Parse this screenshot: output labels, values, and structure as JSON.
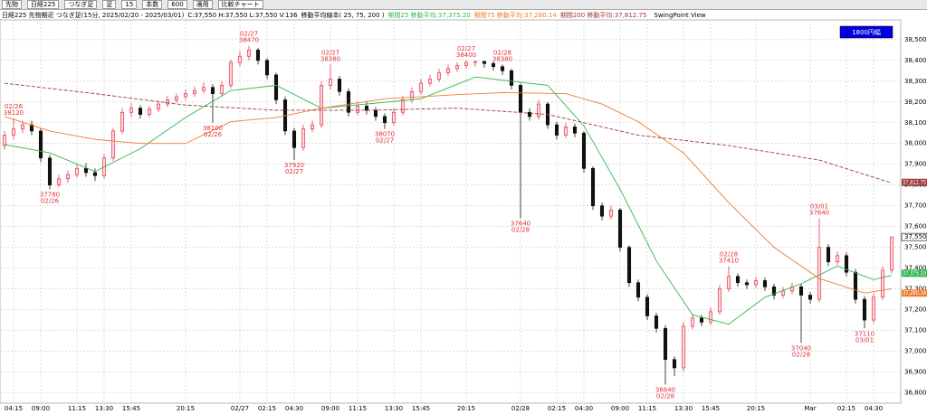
{
  "toolbar": [
    "先物",
    "日経225",
    "つなぎ足",
    "足",
    "15",
    "本数",
    "600",
    "適用",
    "比較チャート"
  ],
  "chart_data": {
    "type": "candlestick",
    "title": "日経225 先物期近 つなぎ足(15分, 2025/02/20 - 2025/03/01)",
    "ohlcv": "C:37,550 H:37,550 L:37,550 V:136",
    "ma_title": "移動平均線本( 25, 75, 200 )",
    "view_label": "SwingPoint View",
    "range_label": "1800円幅",
    "up_color": "#e8394a",
    "down_color": "#111111",
    "ylim": [
      36750,
      38595
    ],
    "yticks": [
      {
        "value": 38500,
        "label": "38,500"
      },
      {
        "value": 38400,
        "label": "38,400"
      },
      {
        "value": 38300,
        "label": "38,300"
      },
      {
        "value": 38200,
        "label": "38,200"
      },
      {
        "value": 38100,
        "label": "38,100"
      },
      {
        "value": 38000,
        "label": "38,000"
      },
      {
        "value": 37900,
        "label": "37,900"
      },
      {
        "value": 37800,
        "label": "37,800"
      },
      {
        "value": 37700,
        "label": "37,700"
      },
      {
        "value": 37600,
        "label": "37,600"
      },
      {
        "value": 37500,
        "label": "37,500"
      },
      {
        "value": 37400,
        "label": "37,400"
      },
      {
        "value": 37300,
        "label": "37,300"
      },
      {
        "value": 37200,
        "label": "37,200"
      },
      {
        "value": 37100,
        "label": "37,100"
      },
      {
        "value": 37000,
        "label": "37,000"
      },
      {
        "value": 36900,
        "label": "36,900"
      },
      {
        "value": 36800,
        "label": "36,800"
      }
    ],
    "xlim": [
      0,
      98
    ],
    "xticks": [
      {
        "value": 1,
        "label": "04:15"
      },
      {
        "value": 4,
        "label": "09:00"
      },
      {
        "value": 8,
        "label": "11:15"
      },
      {
        "value": 11,
        "label": "13:30"
      },
      {
        "value": 14,
        "label": "15:45"
      },
      {
        "value": 20,
        "label": "20:15"
      },
      {
        "value": 26,
        "label": "02/27"
      },
      {
        "value": 29,
        "label": "02:15"
      },
      {
        "value": 32,
        "label": "04:30"
      },
      {
        "value": 36,
        "label": "09:00"
      },
      {
        "value": 39,
        "label": "11:15"
      },
      {
        "value": 43,
        "label": "13:30"
      },
      {
        "value": 46,
        "label": "15:45"
      },
      {
        "value": 51,
        "label": "20:15"
      },
      {
        "value": 57,
        "label": "02/28"
      },
      {
        "value": 61,
        "label": "02:15"
      },
      {
        "value": 64,
        "label": "04:30"
      },
      {
        "value": 68,
        "label": "09:00"
      },
      {
        "value": 71,
        "label": "11:15"
      },
      {
        "value": 75,
        "label": "13:30"
      },
      {
        "value": 78,
        "label": "15:45"
      },
      {
        "value": 83,
        "label": "20:15"
      },
      {
        "value": 89,
        "label": "Mar"
      },
      {
        "value": 93,
        "label": "02:15"
      },
      {
        "value": 96,
        "label": "04:30"
      }
    ],
    "grid": true,
    "candles": {
      "open": [
        37990,
        38040,
        38070,
        38090,
        38060,
        37930,
        37800,
        37830,
        37850,
        37880,
        37860,
        37845,
        37930,
        38060,
        38150,
        38170,
        38140,
        38165,
        38190,
        38210,
        38225,
        38240,
        38255,
        38270,
        38240,
        38280,
        38390,
        38420,
        38450,
        38400,
        38330,
        38210,
        38060,
        37980,
        38070,
        38090,
        38280,
        38310,
        38250,
        38150,
        38180,
        38160,
        38130,
        38100,
        38150,
        38210,
        38250,
        38290,
        38310,
        38340,
        38360,
        38375,
        38390,
        38395,
        38385,
        38370,
        38350,
        38280,
        38150,
        38130,
        38190,
        38090,
        38040,
        38080,
        38050,
        37880,
        37700,
        37650,
        37680,
        37500,
        37330,
        37260,
        37170,
        37110,
        36960,
        36920,
        37120,
        37160,
        37140,
        37190,
        37300,
        37360,
        37330,
        37320,
        37340,
        37310,
        37270,
        37290,
        37310,
        37270,
        37250,
        37500,
        37430,
        37460,
        37380,
        37250,
        37150,
        37260,
        37390
      ],
      "high": [
        38060,
        38120,
        38110,
        38110,
        38075,
        37945,
        37850,
        37870,
        37900,
        37905,
        37880,
        37950,
        38075,
        38170,
        38195,
        38185,
        38180,
        38205,
        38230,
        38240,
        38260,
        38275,
        38295,
        38285,
        38300,
        38405,
        38445,
        38470,
        38460,
        38410,
        38340,
        38225,
        38075,
        38090,
        38110,
        38300,
        38380,
        38325,
        38265,
        38200,
        38200,
        38175,
        38145,
        38170,
        38230,
        38270,
        38310,
        38330,
        38360,
        38380,
        38390,
        38400,
        38398,
        38398,
        38395,
        38380,
        38360,
        38290,
        38170,
        38210,
        38200,
        38105,
        38100,
        38095,
        38060,
        37890,
        37715,
        37700,
        37690,
        37510,
        37345,
        37275,
        37185,
        37125,
        36975,
        37140,
        37180,
        37175,
        37210,
        37320,
        37410,
        37375,
        37345,
        37360,
        37355,
        37325,
        37310,
        37330,
        37325,
        37285,
        37640,
        37515,
        37480,
        37475,
        37395,
        37265,
        37280,
        37410,
        37550
      ],
      "low": [
        37970,
        38020,
        38050,
        38040,
        37910,
        37780,
        37790,
        37810,
        37835,
        37840,
        37820,
        37830,
        37915,
        38045,
        38130,
        38120,
        38125,
        38150,
        38175,
        38195,
        38210,
        38225,
        38240,
        38100,
        38225,
        38265,
        38370,
        38400,
        38380,
        38310,
        38190,
        38040,
        37920,
        37965,
        38055,
        38075,
        38260,
        38230,
        38130,
        38135,
        38140,
        38110,
        38070,
        38085,
        38135,
        38195,
        38235,
        38275,
        38295,
        38325,
        38345,
        38360,
        38370,
        38365,
        38350,
        38330,
        38260,
        37640,
        38110,
        38115,
        38070,
        38020,
        38025,
        38030,
        37860,
        37680,
        37630,
        37635,
        37480,
        37310,
        37240,
        37150,
        37090,
        36840,
        36880,
        36905,
        37105,
        37120,
        37125,
        37175,
        37285,
        37310,
        37300,
        37305,
        37290,
        37250,
        37255,
        37275,
        37040,
        37230,
        37235,
        37410,
        37415,
        37360,
        37230,
        37110,
        37135,
        37245,
        37375
      ],
      "close": [
        38040,
        38070,
        38090,
        38060,
        37930,
        37800,
        37830,
        37850,
        37880,
        37860,
        37845,
        37930,
        38060,
        38150,
        38170,
        38140,
        38165,
        38190,
        38210,
        38225,
        38240,
        38255,
        38270,
        38240,
        38280,
        38390,
        38420,
        38450,
        38400,
        38330,
        38210,
        38060,
        37980,
        38070,
        38090,
        38280,
        38310,
        38250,
        38150,
        38180,
        38160,
        38130,
        38100,
        38150,
        38210,
        38250,
        38290,
        38310,
        38340,
        38360,
        38375,
        38390,
        38395,
        38385,
        38370,
        38350,
        38280,
        38150,
        38130,
        38190,
        38090,
        38040,
        38080,
        38050,
        37880,
        37700,
        37650,
        37680,
        37500,
        37330,
        37260,
        37170,
        37110,
        36960,
        36920,
        37120,
        37160,
        37140,
        37190,
        37300,
        37360,
        37330,
        37320,
        37340,
        37310,
        37270,
        37290,
        37310,
        37270,
        37250,
        37500,
        37430,
        37460,
        37380,
        37250,
        37150,
        37260,
        37390,
        37550
      ]
    },
    "series": [
      {
        "name": "期間25 移動平均:",
        "last_label": "37,375.20",
        "last": 37375.2,
        "color": "#2db84a",
        "dashed": false,
        "x": [
          0,
          5,
          10,
          15,
          20,
          25,
          30,
          35,
          40,
          46,
          52,
          56,
          60,
          64,
          68,
          72,
          76,
          80,
          84,
          88,
          92,
          96,
          98
        ],
        "values": [
          37995,
          37955,
          37865,
          37975,
          38125,
          38255,
          38280,
          38170,
          38190,
          38215,
          38320,
          38300,
          38280,
          38085,
          37780,
          37435,
          37175,
          37130,
          37260,
          37325,
          37410,
          37345,
          37365
        ]
      },
      {
        "name": "期間75 移動平均:",
        "last_label": "37,280.14",
        "last": 37280.14,
        "color": "#f07a30",
        "dashed": false,
        "x": [
          0,
          5,
          10,
          15,
          20,
          25,
          30,
          35,
          42,
          50,
          55,
          62,
          66,
          70,
          75,
          80,
          85,
          90,
          95,
          98
        ],
        "values": [
          38130,
          38060,
          38020,
          38000,
          38000,
          38105,
          38125,
          38170,
          38215,
          38235,
          38245,
          38240,
          38190,
          38105,
          37955,
          37715,
          37500,
          37350,
          37280,
          37300
        ]
      },
      {
        "name": "期間200 移動平均:",
        "last_label": "37,812.75",
        "last": 37812.75,
        "color": "#9a3a3a",
        "dashed": true,
        "x": [
          0,
          10,
          20,
          30,
          40,
          50,
          60,
          70,
          80,
          90,
          98
        ],
        "values": [
          38290,
          38240,
          38185,
          38160,
          38160,
          38170,
          38140,
          38040,
          37990,
          37920,
          37810
        ]
      }
    ],
    "last_price": {
      "value": 37550,
      "label": "37,550"
    },
    "annotations": [
      {
        "x": 1,
        "date": "02/26",
        "price": 38120
      },
      {
        "x": 5,
        "date": "02/26",
        "price": 37780
      },
      {
        "x": 23,
        "date": "02/26",
        "price": 38100
      },
      {
        "x": 27,
        "date": "02/27",
        "price": 38470
      },
      {
        "x": 32,
        "date": "02/27",
        "price": 37920
      },
      {
        "x": 36,
        "date": "02/27",
        "price": 38380
      },
      {
        "x": 42,
        "date": "02/27",
        "price": 38070
      },
      {
        "x": 51,
        "date": "02/27",
        "price": 38400
      },
      {
        "x": 55,
        "date": "02/28",
        "price": 38380
      },
      {
        "x": 57,
        "date": "02/28",
        "price": 37640
      },
      {
        "x": 73,
        "date": "02/28",
        "price": 36840
      },
      {
        "x": 80,
        "date": "02/28",
        "price": 37410
      },
      {
        "x": 88,
        "date": "02/28",
        "price": 37040
      },
      {
        "x": 90,
        "date": "03/01",
        "price": 37640
      },
      {
        "x": 95,
        "date": "03/01",
        "price": 37110
      }
    ]
  }
}
